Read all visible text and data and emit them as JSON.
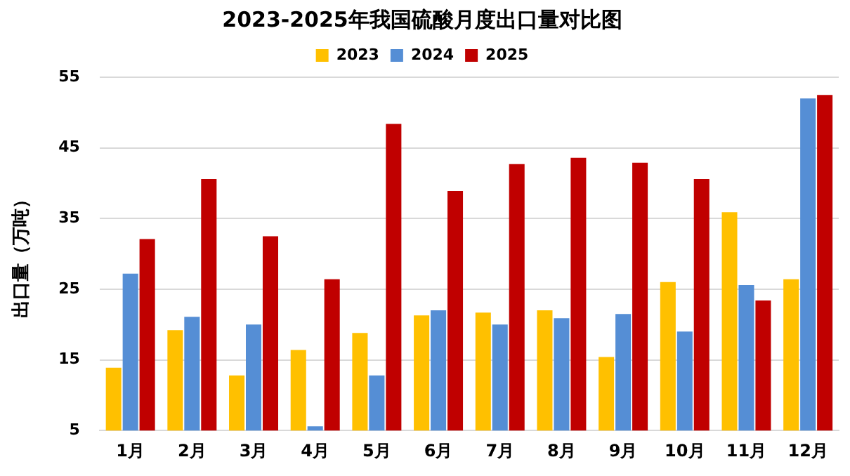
{
  "chart_data": {
    "type": "bar",
    "title": "2023-2025年我国硫酸月度出口量对比图",
    "ylabel": "出口量（万吨）",
    "categories": [
      "1月",
      "2月",
      "3月",
      "4月",
      "5月",
      "6月",
      "7月",
      "8月",
      "9月",
      "10月",
      "11月",
      "12月"
    ],
    "series": [
      {
        "name": "2023",
        "color": "#ffc000",
        "values": [
          13.9,
          19.2,
          12.8,
          16.4,
          18.8,
          21.3,
          21.7,
          22.0,
          15.4,
          26.0,
          35.9,
          26.4
        ]
      },
      {
        "name": "2024",
        "color": "#558ed5",
        "values": [
          27.2,
          21.1,
          20.0,
          5.6,
          12.8,
          22.0,
          20.0,
          20.9,
          21.5,
          19.0,
          25.6,
          52.0
        ]
      },
      {
        "name": "2025",
        "color": "#c00000",
        "values": [
          32.1,
          40.6,
          32.5,
          26.4,
          48.4,
          38.9,
          42.7,
          43.6,
          42.9,
          40.6,
          23.4,
          52.5
        ]
      }
    ],
    "ylim": [
      5,
      55
    ],
    "yticks": [
      5,
      15,
      25,
      35,
      45,
      55
    ],
    "grid": "y",
    "legend": "top"
  }
}
